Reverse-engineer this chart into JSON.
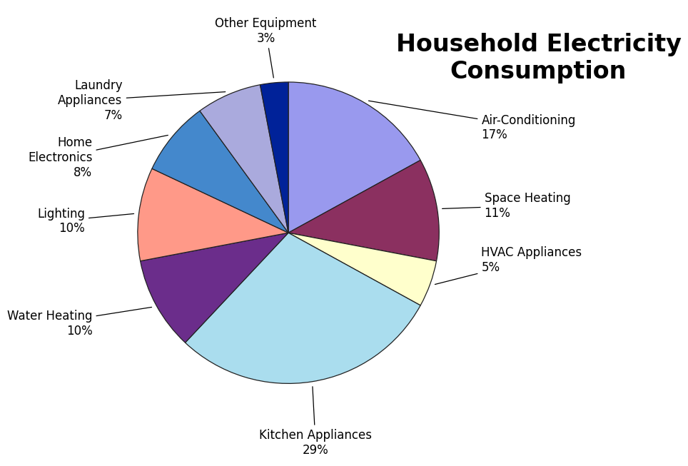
{
  "title": "Household Electricity\nConsumption",
  "slices": [
    {
      "label": "Air-Conditioning\n17%",
      "value": 17,
      "color": "#9999EE"
    },
    {
      "label": "Space Heating\n11%",
      "value": 11,
      "color": "#8B3060"
    },
    {
      "label": "HVAC Appliances\n5%",
      "value": 5,
      "color": "#FFFFCC"
    },
    {
      "label": "Kitchen Appliances\n29%",
      "value": 29,
      "color": "#AADDEE"
    },
    {
      "label": "Water Heating\n10%",
      "value": 10,
      "color": "#6B2D8B"
    },
    {
      "label": "Lighting\n10%",
      "value": 10,
      "color": "#FF9988"
    },
    {
      "label": "Home\nElectronics\n8%",
      "value": 8,
      "color": "#4488CC"
    },
    {
      "label": "Laundry\nAppliances\n7%",
      "value": 7,
      "color": "#AAAADD"
    },
    {
      "label": "Other Equipment\n3%",
      "value": 3,
      "color": "#002299"
    }
  ],
  "title_fontsize": 24,
  "label_fontsize": 12,
  "background_color": "#FFFFFF",
  "start_angle": 90
}
